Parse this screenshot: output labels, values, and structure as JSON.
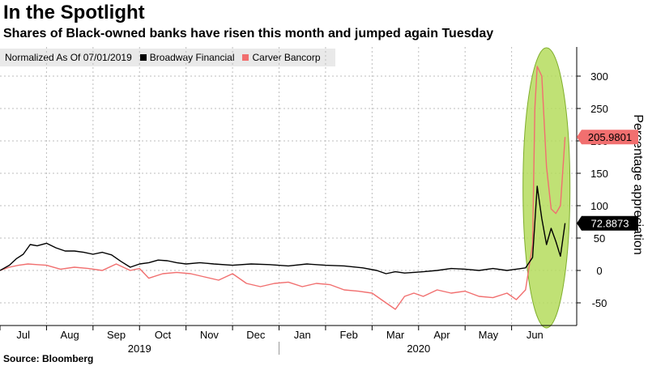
{
  "chart_data": {
    "type": "line",
    "title": "In the Spotlight",
    "subtitle": "Shares of Black-owned banks have risen this month and jumped again Tuesday",
    "legend_note": "Normalized As Of 07/01/2019",
    "ylabel": "Percentage appreciation",
    "source": "Source: Bloomberg",
    "ylim": [
      -85,
      345
    ],
    "yticks": [
      "300",
      "250",
      "200",
      "150",
      "100",
      "50",
      "0",
      "-50"
    ],
    "ytick_values": [
      300,
      250,
      200,
      150,
      100,
      50,
      0,
      -50
    ],
    "month_labels": [
      "Jul",
      "Aug",
      "Sep",
      "Oct",
      "Nov",
      "Dec",
      "Jan",
      "Feb",
      "Mar",
      "Apr",
      "May",
      "Jun"
    ],
    "month_positions": [
      0.5,
      1.5,
      2.5,
      3.5,
      4.5,
      5.5,
      6.5,
      7.5,
      8.5,
      9.5,
      10.5,
      11.5
    ],
    "year_labels": [
      "2019",
      "2020"
    ],
    "year_positions": [
      3,
      9
    ],
    "xlim": [
      0,
      12.4
    ],
    "series": [
      {
        "name": "Broadway Financial",
        "color": "#000000",
        "last_value": "72.8873",
        "x": [
          0,
          0.2,
          0.35,
          0.5,
          0.65,
          0.8,
          1.0,
          1.2,
          1.4,
          1.6,
          1.8,
          2.0,
          2.2,
          2.4,
          2.6,
          2.8,
          3.0,
          3.2,
          3.4,
          3.6,
          3.8,
          4.0,
          4.3,
          4.6,
          5.0,
          5.4,
          5.8,
          6.2,
          6.6,
          7.0,
          7.4,
          7.8,
          8.1,
          8.3,
          8.5,
          8.7,
          8.9,
          9.1,
          9.4,
          9.7,
          10.0,
          10.3,
          10.6,
          10.9,
          11.1,
          11.3,
          11.45,
          11.55,
          11.65,
          11.75,
          11.85,
          11.95,
          12.05,
          12.15
        ],
        "values": [
          0,
          8,
          18,
          25,
          40,
          38,
          42,
          35,
          30,
          30,
          28,
          25,
          28,
          24,
          14,
          5,
          10,
          12,
          16,
          15,
          12,
          10,
          12,
          10,
          8,
          10,
          9,
          7,
          10,
          8,
          7,
          4,
          0,
          -5,
          -2,
          -4,
          -3,
          -2,
          0,
          3,
          2,
          0,
          3,
          0,
          2,
          4,
          20,
          130,
          80,
          40,
          65,
          45,
          22,
          73
        ]
      },
      {
        "name": "Carver Bancorp",
        "color": "#f16f6f",
        "last_value": "205.9801",
        "x": [
          0,
          0.2,
          0.4,
          0.6,
          0.8,
          1.0,
          1.3,
          1.6,
          1.9,
          2.2,
          2.5,
          2.8,
          3.0,
          3.2,
          3.5,
          3.8,
          4.1,
          4.4,
          4.7,
          5.0,
          5.3,
          5.6,
          5.9,
          6.2,
          6.5,
          6.8,
          7.1,
          7.4,
          7.7,
          8.0,
          8.2,
          8.4,
          8.5,
          8.7,
          8.9,
          9.1,
          9.4,
          9.7,
          10.0,
          10.3,
          10.6,
          10.9,
          11.1,
          11.3,
          11.45,
          11.5,
          11.55,
          11.65,
          11.75,
          11.85,
          11.95,
          12.05,
          12.15
        ],
        "values": [
          0,
          5,
          8,
          10,
          9,
          8,
          2,
          5,
          3,
          0,
          10,
          0,
          3,
          -12,
          -5,
          -3,
          -5,
          -10,
          -15,
          -5,
          -20,
          -25,
          -20,
          -18,
          -25,
          -20,
          -22,
          -30,
          -32,
          -35,
          -45,
          -55,
          -60,
          -40,
          -35,
          -40,
          -30,
          -35,
          -32,
          -40,
          -42,
          -35,
          -45,
          -30,
          40,
          250,
          315,
          300,
          160,
          95,
          88,
          100,
          206
        ]
      }
    ],
    "annotation": "highlight ellipse over June 2020 surge"
  },
  "colors": {
    "broadway": "#000000",
    "carver": "#f16f6f",
    "highlight_fill": "#b5dc5d",
    "highlight_stroke": "#7fae2c",
    "legend_bg": "#e9e9e9",
    "grid": "#bdbdbd"
  }
}
